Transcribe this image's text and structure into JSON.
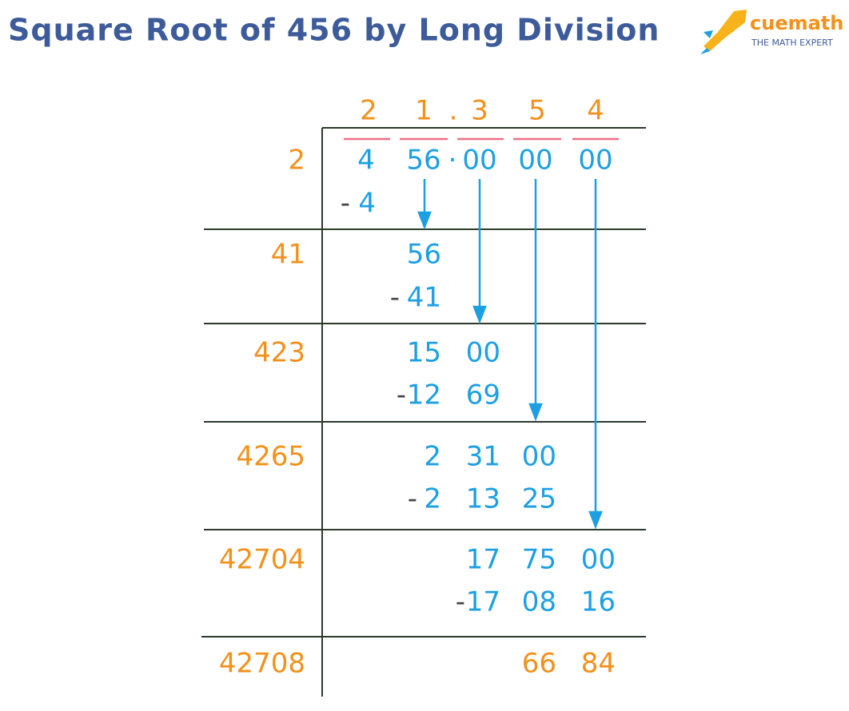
{
  "header": {
    "title": "Square Root of 456 by Long Division",
    "logo": {
      "name": "cuemath",
      "tagline": "THE MATH EXPERT"
    }
  },
  "quotient": [
    "2",
    "1",
    ".",
    "3",
    "5",
    "4"
  ],
  "dividend": [
    "4",
    "56",
    "·",
    "00",
    "00",
    "00"
  ],
  "steps": [
    {
      "divisor": "2",
      "product": {
        "sign": "-",
        "digits": [
          "4"
        ]
      }
    },
    {
      "divisor": "41",
      "remainder": [
        "56"
      ],
      "product": {
        "sign": "-",
        "digits": [
          "41"
        ]
      }
    },
    {
      "divisor": "423",
      "remainder": [
        "15",
        "00"
      ],
      "product": {
        "sign": "-",
        "digits": [
          "12",
          "69"
        ]
      }
    },
    {
      "divisor": "4265",
      "remainder": [
        "2",
        "31",
        "00"
      ],
      "product": {
        "sign": "-",
        "digits": [
          "2",
          "13",
          "25"
        ]
      }
    },
    {
      "divisor": "42704",
      "remainder": [
        "17",
        "75",
        "00"
      ],
      "product": {
        "sign": "-",
        "digits": [
          "17",
          "08",
          "16"
        ]
      }
    },
    {
      "divisor": "42708",
      "remainder": [
        "66",
        "84"
      ]
    }
  ]
}
